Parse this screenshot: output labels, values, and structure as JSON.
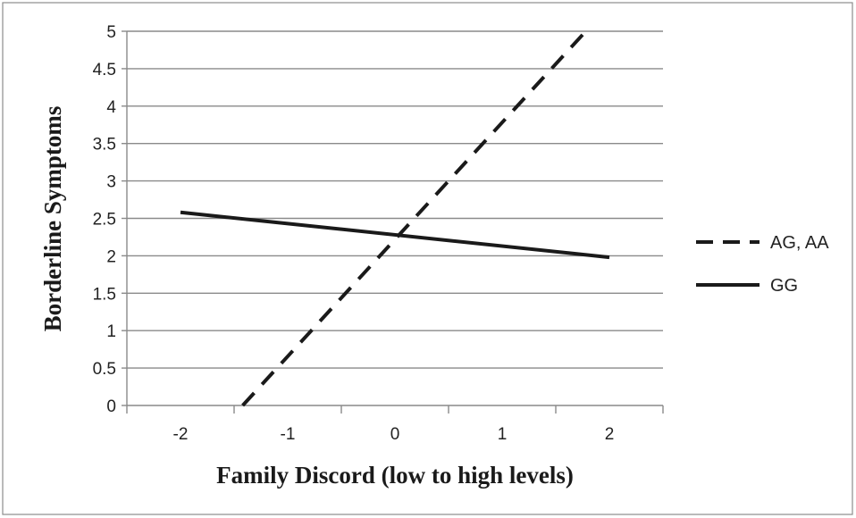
{
  "chart_data": {
    "type": "line",
    "title": "",
    "xlabel": "Family Discord (low to high levels)",
    "ylabel": "Borderline Symptoms",
    "xlim": [
      -2.5,
      2.5
    ],
    "ylim": [
      0,
      5
    ],
    "xticks": [
      "-2",
      "-1",
      "0",
      "1",
      "2"
    ],
    "yticks": [
      "0",
      "0.5",
      "1",
      "1.5",
      "2",
      "2.5",
      "3",
      "3.5",
      "4",
      "4.5",
      "5"
    ],
    "grid": "horizontal",
    "legend_position": "right",
    "series": [
      {
        "name": "AG, AA",
        "style": "dashed",
        "color": "#1a1a1a",
        "x": [
          -1.42,
          1.78
        ],
        "y": [
          0,
          5
        ]
      },
      {
        "name": "GG",
        "style": "solid",
        "color": "#1a1a1a",
        "x": [
          -2,
          2
        ],
        "y": [
          2.58,
          1.98
        ]
      }
    ]
  }
}
